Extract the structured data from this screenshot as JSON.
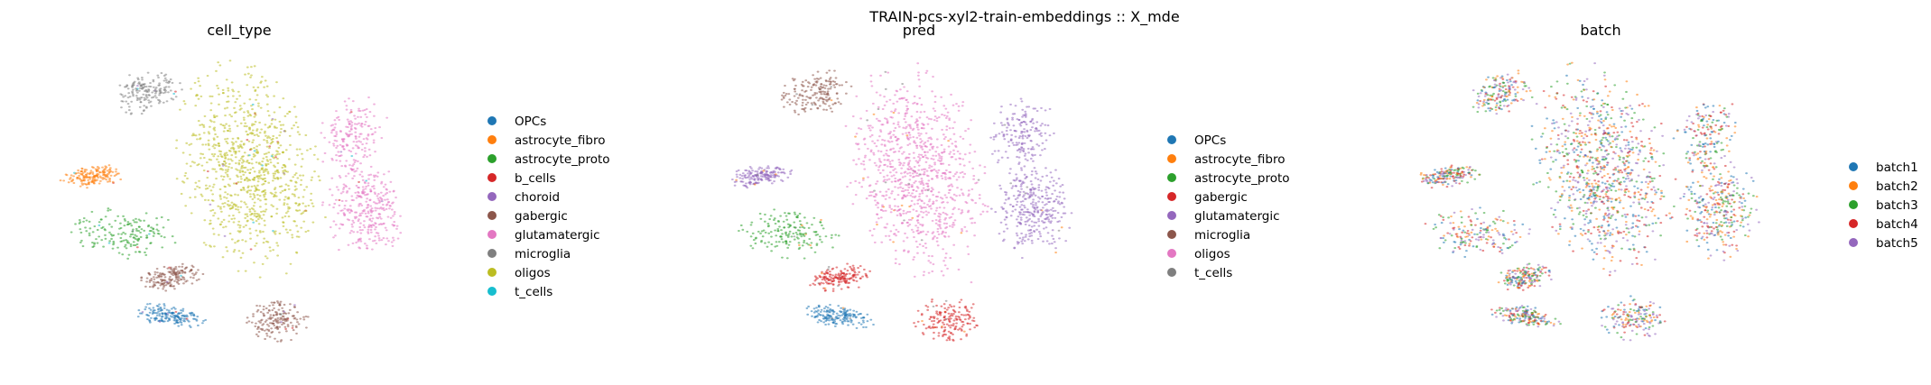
{
  "figure": {
    "suptitle": "TRAIN-pcs-xyl2-train-embeddings :: X_mde"
  },
  "chart_data": [
    {
      "type": "scatter",
      "title": "cell_type",
      "xlabel": "",
      "ylabel": "",
      "grid": false,
      "axes_visible": false,
      "legend_position": "right",
      "series": [
        {
          "name": "OPCs",
          "color": "#1f77b4"
        },
        {
          "name": "astrocyte_fibro",
          "color": "#ff7f0e"
        },
        {
          "name": "astrocyte_proto",
          "color": "#2ca02c"
        },
        {
          "name": "b_cells",
          "color": "#d62728"
        },
        {
          "name": "choroid",
          "color": "#9467bd"
        },
        {
          "name": "gabergic",
          "color": "#8c564b"
        },
        {
          "name": "glutamatergic",
          "color": "#e377c2"
        },
        {
          "name": "microglia",
          "color": "#7f7f7f"
        },
        {
          "name": "oligos",
          "color": "#bcbd22"
        },
        {
          "name": "t_cells",
          "color": "#17becf"
        }
      ]
    },
    {
      "type": "scatter",
      "title": "pred",
      "xlabel": "",
      "ylabel": "",
      "grid": false,
      "axes_visible": false,
      "legend_position": "right",
      "series": [
        {
          "name": "OPCs",
          "color": "#1f77b4"
        },
        {
          "name": "astrocyte_fibro",
          "color": "#ff7f0e"
        },
        {
          "name": "astrocyte_proto",
          "color": "#2ca02c"
        },
        {
          "name": "gabergic",
          "color": "#d62728"
        },
        {
          "name": "glutamatergic",
          "color": "#9467bd"
        },
        {
          "name": "microglia",
          "color": "#8c564b"
        },
        {
          "name": "oligos",
          "color": "#e377c2"
        },
        {
          "name": "t_cells",
          "color": "#7f7f7f"
        }
      ]
    },
    {
      "type": "scatter",
      "title": "batch",
      "xlabel": "",
      "ylabel": "",
      "grid": false,
      "axes_visible": false,
      "legend_position": "right",
      "series": [
        {
          "name": "batch1",
          "color": "#1f77b4"
        },
        {
          "name": "batch2",
          "color": "#ff7f0e"
        },
        {
          "name": "batch3",
          "color": "#2ca02c"
        },
        {
          "name": "batch4",
          "color": "#d62728"
        },
        {
          "name": "batch5",
          "color": "#9467bd"
        }
      ]
    }
  ]
}
